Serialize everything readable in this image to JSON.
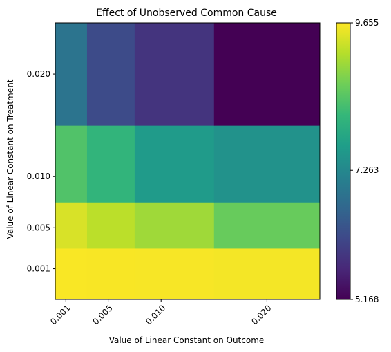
{
  "chart_data": {
    "type": "heatmap",
    "title": "Effect of Unobserved Common Cause",
    "xlabel": "Value of Linear Constant on Outcome",
    "ylabel": "Value of Linear Constant on Treatment",
    "x_values": [
      0.001,
      0.005,
      0.01,
      0.02
    ],
    "x_tick_labels": [
      "0.001",
      "0.005",
      "0.010",
      "0.020"
    ],
    "x_edges": [
      0.0,
      0.003,
      0.0075,
      0.015,
      0.025
    ],
    "y_values": [
      0.001,
      0.005,
      0.01,
      0.02
    ],
    "y_tick_labels": [
      "0.001",
      "0.005",
      "0.010",
      "0.020"
    ],
    "y_edges": [
      -0.002,
      0.003,
      0.0075,
      0.015,
      0.025
    ],
    "z": [
      [
        9.63,
        9.62,
        9.61,
        9.59
      ],
      [
        9.4,
        9.2,
        9.0,
        8.6
      ],
      [
        8.4,
        8.1,
        7.6,
        7.45
      ],
      [
        6.9,
        6.2,
        5.85,
        5.17
      ]
    ],
    "colorbar": {
      "min": 5.168,
      "max": 9.655,
      "ticks": [
        5.168,
        7.263,
        9.655
      ],
      "tick_labels": [
        "5.168",
        "7.263",
        "9.655"
      ]
    },
    "colormap": "viridis",
    "grid": false,
    "legend": "none"
  }
}
